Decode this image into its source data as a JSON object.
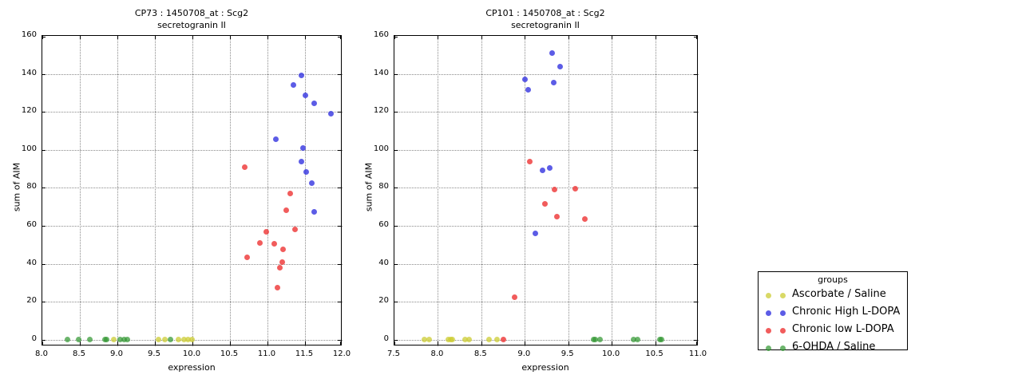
{
  "figure": {
    "background": "#ffffff",
    "grid_color": "#8a8a8a",
    "frame_color": "#000000"
  },
  "groups": [
    {
      "label": "Ascorbate / Saline",
      "color": "rgba(204,204,51,0.75)"
    },
    {
      "label": "Chronic High L-DOPA",
      "color": "rgba(51,51,224,0.8)"
    },
    {
      "label": "Chronic low L-DOPA",
      "color": "rgba(238,51,51,0.8)"
    },
    {
      "label": "6-OHDA / Saline",
      "color": "rgba(51,153,51,0.72)"
    }
  ],
  "legend": {
    "title": "groups",
    "position": "right-bottom"
  },
  "chart_data": [
    {
      "type": "scatter",
      "title": "CP73 : 1450708_at : Scg2",
      "subtitle": "secretogranin II",
      "xlabel": "expression",
      "ylabel": "sum of AIM",
      "xlim": [
        8.0,
        12.0
      ],
      "ylim": [
        0,
        160
      ],
      "xticks": [
        8.0,
        8.5,
        9.0,
        9.5,
        10.0,
        10.5,
        11.0,
        11.5,
        12.0
      ],
      "yticks": [
        0,
        20,
        40,
        60,
        80,
        100,
        120,
        140,
        160
      ],
      "grid": true,
      "series": [
        {
          "name": "Ascorbate / Saline",
          "points": [
            [
              8.95,
              0
            ],
            [
              9.55,
              0
            ],
            [
              9.63,
              0
            ],
            [
              9.81,
              0
            ],
            [
              9.89,
              0
            ],
            [
              9.94,
              0
            ],
            [
              9.99,
              0
            ]
          ]
        },
        {
          "name": "Chronic High L-DOPA",
          "points": [
            [
              11.45,
              139
            ],
            [
              11.35,
              134
            ],
            [
              11.5,
              128.5
            ],
            [
              11.62,
              124.5
            ],
            [
              11.85,
              119
            ],
            [
              11.11,
              105.5
            ],
            [
              11.47,
              101
            ],
            [
              11.45,
              94
            ],
            [
              11.52,
              88.5
            ],
            [
              11.59,
              82.5
            ],
            [
              11.62,
              67.5
            ]
          ]
        },
        {
          "name": "Chronic low L-DOPA",
          "points": [
            [
              10.7,
              91
            ],
            [
              11.3,
              77
            ],
            [
              11.25,
              68
            ],
            [
              11.37,
              58
            ],
            [
              10.98,
              57
            ],
            [
              10.9,
              51
            ],
            [
              11.09,
              50.5
            ],
            [
              11.21,
              47.5
            ],
            [
              10.73,
              43.5
            ],
            [
              11.2,
              41
            ],
            [
              11.17,
              38
            ],
            [
              11.13,
              27.5
            ]
          ]
        },
        {
          "name": "6-OHDA / Saline",
          "points": [
            [
              8.33,
              0
            ],
            [
              8.48,
              0
            ],
            [
              8.63,
              0
            ],
            [
              8.84,
              0
            ],
            [
              8.86,
              0
            ],
            [
              9.04,
              0
            ],
            [
              9.09,
              0
            ],
            [
              9.13,
              0
            ],
            [
              9.71,
              0
            ]
          ]
        }
      ]
    },
    {
      "type": "scatter",
      "title": "CP101 : 1450708_at : Scg2",
      "subtitle": "secretogranin II",
      "xlabel": "expression",
      "ylabel": "sum of AIM",
      "xlim": [
        7.5,
        11.0
      ],
      "ylim": [
        0,
        160
      ],
      "xticks": [
        7.5,
        8.0,
        8.5,
        9.0,
        9.5,
        10.0,
        10.5,
        11.0
      ],
      "yticks": [
        0,
        20,
        40,
        60,
        80,
        100,
        120,
        140,
        160
      ],
      "grid": true,
      "series": [
        {
          "name": "Ascorbate / Saline",
          "points": [
            [
              7.84,
              0
            ],
            [
              7.9,
              0
            ],
            [
              8.12,
              0
            ],
            [
              8.15,
              0
            ],
            [
              8.17,
              0
            ],
            [
              8.31,
              0
            ],
            [
              8.36,
              0
            ],
            [
              8.59,
              0
            ],
            [
              8.68,
              0
            ]
          ]
        },
        {
          "name": "Chronic High L-DOPA",
          "points": [
            [
              9.31,
              151
            ],
            [
              9.41,
              144
            ],
            [
              9.0,
              137
            ],
            [
              9.33,
              135.5
            ],
            [
              9.04,
              131.5
            ],
            [
              9.29,
              90.5
            ],
            [
              9.2,
              89
            ],
            [
              9.12,
              56
            ]
          ]
        },
        {
          "name": "Chronic low L-DOPA",
          "points": [
            [
              9.06,
              94
            ],
            [
              9.58,
              79.5
            ],
            [
              9.34,
              79
            ],
            [
              9.23,
              71.5
            ],
            [
              9.37,
              65
            ],
            [
              9.69,
              63.5
            ],
            [
              8.88,
              22.5
            ],
            [
              8.75,
              0
            ]
          ]
        },
        {
          "name": "6-OHDA / Saline",
          "points": [
            [
              9.79,
              0
            ],
            [
              9.81,
              0
            ],
            [
              9.87,
              0
            ],
            [
              10.25,
              0
            ],
            [
              10.3,
              0
            ],
            [
              10.55,
              0
            ],
            [
              10.57,
              0
            ]
          ]
        }
      ]
    }
  ]
}
